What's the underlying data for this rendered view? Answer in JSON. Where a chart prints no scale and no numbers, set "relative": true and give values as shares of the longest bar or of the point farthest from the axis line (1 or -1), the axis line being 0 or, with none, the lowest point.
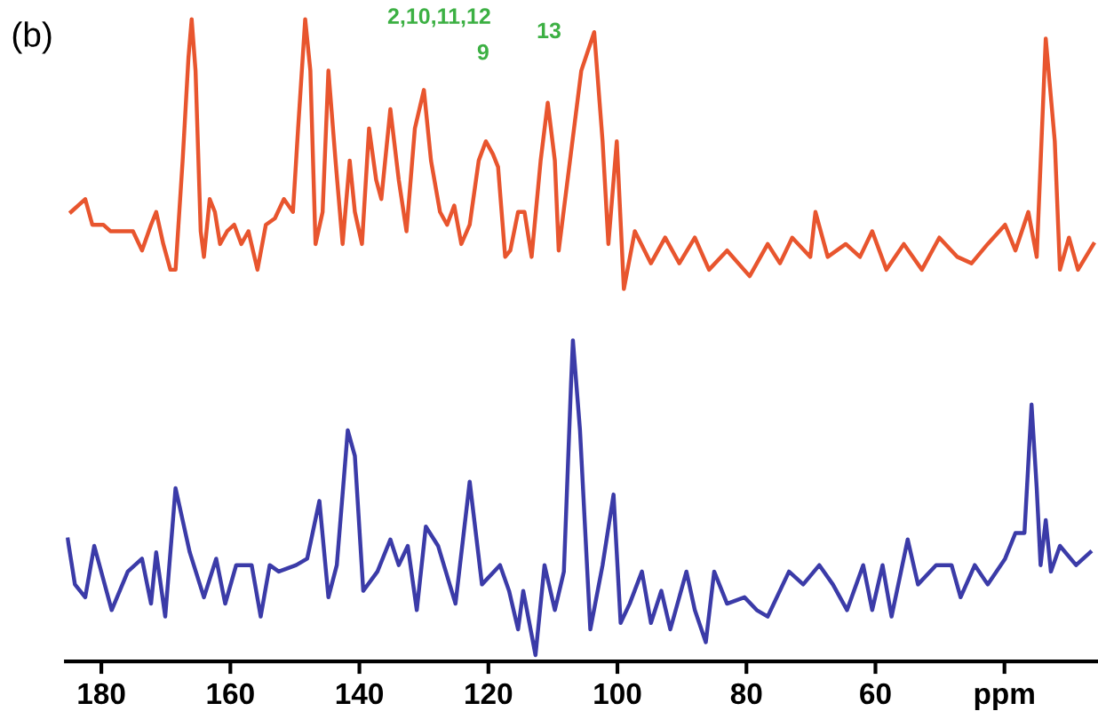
{
  "chart_data": {
    "type": "line",
    "relative": true,
    "grid": false,
    "marker": "none",
    "line_style": "solid",
    "xlim": [
      185.5,
      25.5
    ],
    "xticks": [
      180,
      160,
      140,
      120,
      100,
      80,
      60,
      {
        "value": 40,
        "label": "ppm"
      }
    ],
    "tick_labels": "x",
    "annotations": [
      "(b)",
      "2,10,11,12",
      "9",
      "13"
    ],
    "series": [
      {
        "color": "#e8552e",
        "x": [
          184.7,
          182.5,
          181.4,
          179.7,
          178.6,
          177.0,
          175.1,
          173.7,
          172.3,
          171.5,
          170.4,
          169.3,
          168.5,
          167.4,
          166.5,
          166.0,
          165.4,
          164.6,
          164.1,
          163.2,
          162.4,
          161.6,
          160.5,
          159.4,
          158.3,
          157.2,
          155.8,
          154.5,
          153.1,
          151.7,
          150.3,
          149.5,
          148.4,
          147.6,
          146.8,
          145.7,
          144.8,
          143.7,
          142.6,
          141.5,
          140.7,
          139.6,
          138.5,
          137.4,
          136.6,
          135.2,
          133.9,
          132.7,
          131.4,
          130.0,
          128.9,
          127.5,
          126.4,
          125.3,
          124.2,
          122.9,
          121.5,
          120.4,
          119.3,
          118.5,
          117.4,
          116.6,
          115.4,
          114.4,
          113.3,
          111.9,
          110.8,
          109.7,
          109.1,
          105.6,
          103.6,
          102.3,
          101.4,
          100.1,
          99.0,
          97.3,
          94.8,
          92.6,
          90.4,
          88.0,
          85.8,
          83.0,
          79.5,
          76.7,
          74.8,
          72.9,
          70.1,
          69.3,
          67.4,
          64.6,
          62.4,
          60.5,
          58.3,
          55.6,
          52.8,
          50.1,
          47.3,
          45.1,
          42.6,
          39.9,
          38.3,
          36.3,
          35.0,
          33.6,
          32.2,
          31.4,
          30.0,
          28.6,
          26.2
        ],
        "values": [
          0.7,
          0.72,
          0.68,
          0.68,
          0.67,
          0.67,
          0.67,
          0.64,
          0.68,
          0.7,
          0.65,
          0.61,
          0.61,
          0.78,
          0.94,
          1.0,
          0.92,
          0.67,
          0.63,
          0.72,
          0.7,
          0.65,
          0.67,
          0.68,
          0.65,
          0.67,
          0.61,
          0.68,
          0.69,
          0.72,
          0.7,
          0.83,
          1.0,
          0.92,
          0.65,
          0.7,
          0.92,
          0.78,
          0.65,
          0.78,
          0.7,
          0.65,
          0.83,
          0.75,
          0.72,
          0.86,
          0.75,
          0.67,
          0.83,
          0.89,
          0.78,
          0.7,
          0.68,
          0.71,
          0.65,
          0.68,
          0.78,
          0.81,
          0.79,
          0.77,
          0.63,
          0.64,
          0.7,
          0.7,
          0.63,
          0.78,
          0.87,
          0.78,
          0.64,
          0.92,
          0.98,
          0.81,
          0.65,
          0.81,
          0.58,
          0.67,
          0.62,
          0.66,
          0.62,
          0.66,
          0.61,
          0.64,
          0.6,
          0.65,
          0.62,
          0.66,
          0.63,
          0.7,
          0.63,
          0.65,
          0.63,
          0.67,
          0.61,
          0.65,
          0.61,
          0.66,
          0.63,
          0.62,
          0.65,
          0.68,
          0.64,
          0.7,
          0.63,
          0.97,
          0.81,
          0.61,
          0.66,
          0.61,
          0.65
        ]
      },
      {
        "color": "#3b3ba8",
        "x": [
          185.2,
          184.1,
          182.5,
          181.1,
          178.4,
          175.9,
          173.7,
          172.3,
          171.5,
          170.1,
          168.5,
          166.3,
          164.1,
          162.2,
          160.8,
          159.1,
          156.7,
          155.3,
          153.9,
          152.5,
          149.8,
          148.1,
          146.2,
          144.8,
          143.5,
          141.8,
          140.7,
          139.4,
          137.2,
          135.2,
          133.9,
          132.5,
          131.1,
          129.7,
          127.8,
          125.1,
          122.9,
          121.0,
          118.2,
          116.8,
          115.4,
          114.6,
          112.7,
          111.3,
          109.7,
          108.3,
          107.2,
          106.9,
          105.8,
          104.2,
          102.3,
          100.6,
          99.5,
          98.1,
          96.2,
          94.8,
          93.2,
          91.8,
          89.3,
          88.0,
          86.3,
          85.0,
          83.0,
          80.3,
          78.4,
          76.7,
          73.4,
          71.2,
          68.7,
          66.6,
          64.4,
          61.9,
          60.5,
          58.9,
          57.5,
          55.0,
          53.4,
          50.6,
          48.2,
          46.8,
          44.6,
          42.6,
          39.9,
          38.3,
          36.9,
          35.8,
          35.0,
          34.4,
          33.6,
          32.8,
          31.4,
          28.9,
          26.7
        ],
        "values": [
          0.19,
          0.12,
          0.1,
          0.18,
          0.08,
          0.14,
          0.16,
          0.09,
          0.17,
          0.07,
          0.27,
          0.17,
          0.1,
          0.16,
          0.09,
          0.15,
          0.15,
          0.07,
          0.15,
          0.14,
          0.15,
          0.16,
          0.25,
          0.1,
          0.15,
          0.36,
          0.32,
          0.11,
          0.14,
          0.19,
          0.15,
          0.18,
          0.08,
          0.21,
          0.18,
          0.09,
          0.28,
          0.12,
          0.15,
          0.11,
          0.05,
          0.11,
          0.01,
          0.15,
          0.08,
          0.14,
          0.43,
          0.5,
          0.36,
          0.05,
          0.15,
          0.26,
          0.06,
          0.09,
          0.14,
          0.06,
          0.11,
          0.05,
          0.14,
          0.08,
          0.03,
          0.14,
          0.09,
          0.1,
          0.08,
          0.07,
          0.14,
          0.12,
          0.15,
          0.12,
          0.08,
          0.15,
          0.08,
          0.15,
          0.07,
          0.19,
          0.12,
          0.15,
          0.15,
          0.1,
          0.15,
          0.12,
          0.16,
          0.2,
          0.2,
          0.4,
          0.27,
          0.15,
          0.22,
          0.14,
          0.18,
          0.15,
          0.17
        ]
      }
    ]
  }
}
